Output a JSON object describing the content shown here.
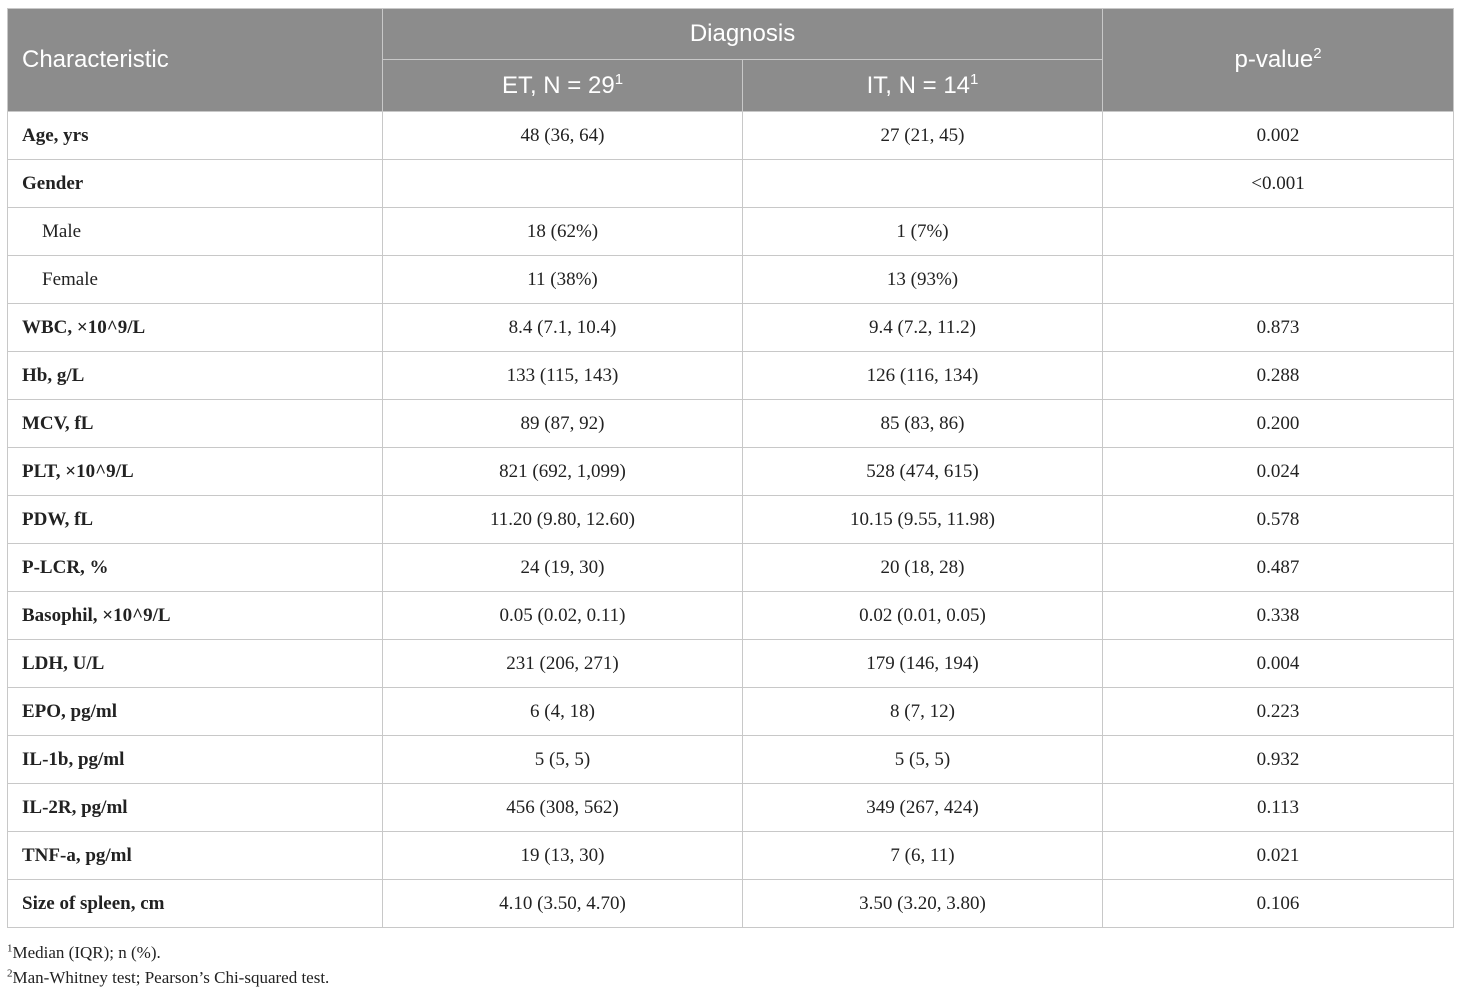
{
  "header": {
    "characteristic": "Characteristic",
    "diagnosis": "Diagnosis",
    "et": "ET, N = 29",
    "it": "IT, N = 14",
    "pvalue": "p-value",
    "sup_group": "1",
    "sup_p": "2"
  },
  "rows": [
    {
      "label": "Age, yrs",
      "et": "48 (36, 64)",
      "it": "27 (21, 45)",
      "p": "0.002"
    },
    {
      "label": "Gender",
      "et": "",
      "it": "",
      "p": "<0.001"
    },
    {
      "label": "Male",
      "et": "18 (62%)",
      "it": "1 (7%)",
      "p": ""
    },
    {
      "label": "Female",
      "et": "11 (38%)",
      "it": "13 (93%)",
      "p": ""
    },
    {
      "label": "WBC, ×10^9/L",
      "et": "8.4 (7.1, 10.4)",
      "it": "9.4 (7.2, 11.2)",
      "p": "0.873"
    },
    {
      "label": "Hb, g/L",
      "et": "133 (115, 143)",
      "it": "126 (116, 134)",
      "p": "0.288"
    },
    {
      "label": "MCV, fL",
      "et": "89 (87, 92)",
      "it": "85 (83, 86)",
      "p": "0.200"
    },
    {
      "label": "PLT, ×10^9/L",
      "et": "821 (692, 1,099)",
      "it": "528 (474, 615)",
      "p": "0.024"
    },
    {
      "label": "PDW, fL",
      "et": "11.20 (9.80, 12.60)",
      "it": "10.15 (9.55, 11.98)",
      "p": "0.578"
    },
    {
      "label": "P-LCR, %",
      "et": "24 (19, 30)",
      "it": "20 (18, 28)",
      "p": "0.487"
    },
    {
      "label": "Basophil, ×10^9/L",
      "et": "0.05 (0.02, 0.11)",
      "it": "0.02 (0.01, 0.05)",
      "p": "0.338"
    },
    {
      "label": "LDH, U/L",
      "et": "231 (206, 271)",
      "it": "179 (146, 194)",
      "p": "0.004"
    },
    {
      "label": "EPO, pg/ml",
      "et": "6 (4, 18)",
      "it": "8 (7, 12)",
      "p": "0.223"
    },
    {
      "label": "IL-1b, pg/ml",
      "et": "5 (5, 5)",
      "it": "5 (5, 5)",
      "p": "0.932"
    },
    {
      "label": "IL-2R, pg/ml",
      "et": "456 (308, 562)",
      "it": "349 (267, 424)",
      "p": "0.113"
    },
    {
      "label": "TNF-a, pg/ml",
      "et": "19 (13, 30)",
      "it": "7 (6, 11)",
      "p": "0.021"
    },
    {
      "label": "Size of spleen, cm",
      "et": "4.10 (3.50, 4.70)",
      "it": "3.50 (3.20, 3.80)",
      "p": "0.106"
    }
  ],
  "footnotes": [
    {
      "mark": "1",
      "text": "Median (IQR); n (%)."
    },
    {
      "mark": "2",
      "text": "Man-Whitney test; Pearson’s Chi-squared test."
    }
  ]
}
